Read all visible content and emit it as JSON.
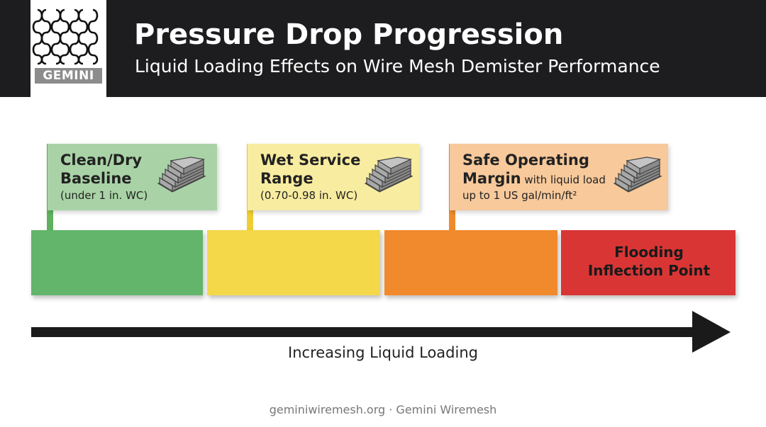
{
  "header": {
    "logo_text": "GEMINI",
    "title": "Pressure Drop Progression",
    "subtitle": "Liquid Loading Effects on Wire Mesh Demister Performance"
  },
  "stages": [
    {
      "title_line1": "Clean/Dry",
      "title_line2": "Baseline",
      "detail": "(under 1 in. WC)",
      "color": "#62b56a",
      "flag_color": "#a9d3a6",
      "pole_color": "#5fb160",
      "icon": "mesh-pad-icon"
    },
    {
      "title_line1": "Wet Service",
      "title_line2": "Range",
      "detail": "(0.70-0.98 in. WC)",
      "color": "#f4d84a",
      "flag_color": "#f8eca0",
      "pole_color": "#f0cd34",
      "icon": "mesh-pad-icon"
    },
    {
      "title_line1": "Safe Operating",
      "title_line2": "Margin",
      "title_line2_suffix": " with liquid load",
      "detail": "up to 1 US gal/min/ft²",
      "color": "#f18a2c",
      "flag_color": "#f7c99b",
      "pole_color": "#ee8a2a",
      "icon": "mesh-pad-icon"
    },
    {
      "title_line1": "Flooding",
      "title_line2": "Inflection Point",
      "color": "#d93535"
    }
  ],
  "axis": {
    "label": "Increasing Liquid Loading",
    "arrow_color": "#1a1a1a"
  },
  "footer": "geminiwiremesh.org · Gemini Wiremesh"
}
